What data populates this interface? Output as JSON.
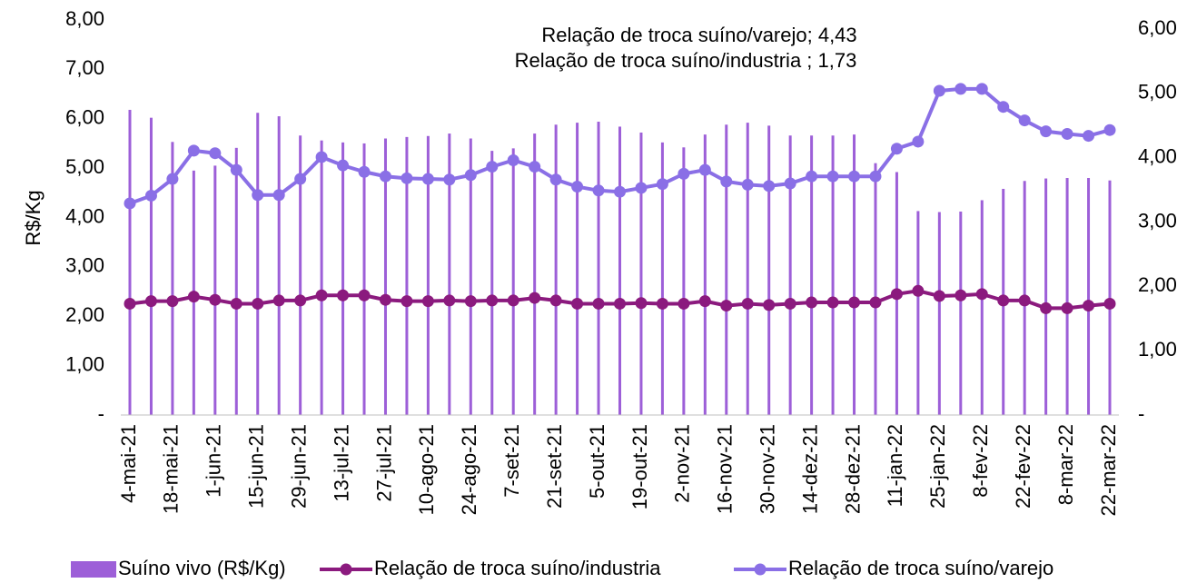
{
  "chart_data": {
    "type": "bar-line",
    "ylabel": "R$/Kg",
    "annotations": [
      "Relação de troca suíno/varejo; 4,43",
      "Relação de troca suíno/industria ; 1,73"
    ],
    "categories": [
      "4-mai-21",
      null,
      "18-mai-21",
      null,
      "1-jun-21",
      null,
      "15-jun-21",
      null,
      "29-jun-21",
      null,
      "13-jul-21",
      null,
      "27-jul-21",
      null,
      "10-ago-21",
      null,
      "24-ago-21",
      null,
      "7-set-21",
      null,
      "21-set-21",
      null,
      "5-out-21",
      null,
      "19-out-21",
      null,
      "2-nov-21",
      null,
      "16-nov-21",
      null,
      "30-nov-21",
      null,
      "14-dez-21",
      null,
      "28-dez-21",
      null,
      "11-jan-22",
      null,
      "25-jan-22",
      null,
      "8-fev-22",
      null,
      "22-fev-22",
      null,
      "8-mar-22",
      null,
      "22-mar-22"
    ],
    "ylim": [
      0,
      8
    ],
    "yticks": [
      {
        "value": 0,
        "label": "-"
      },
      {
        "value": 1,
        "label": "1,00"
      },
      {
        "value": 2,
        "label": "2,00"
      },
      {
        "value": 3,
        "label": "3,00"
      },
      {
        "value": 4,
        "label": "4,00"
      },
      {
        "value": 5,
        "label": "5,00"
      },
      {
        "value": 6,
        "label": "6,00"
      },
      {
        "value": 7,
        "label": "7,00"
      },
      {
        "value": 8,
        "label": "8,00"
      }
    ],
    "y2lim": [
      0,
      6
    ],
    "y2ticks": [
      {
        "value": 0,
        "label": "-"
      },
      {
        "value": 1,
        "label": "1,00"
      },
      {
        "value": 2,
        "label": "2,00"
      },
      {
        "value": 3,
        "label": "3,00"
      },
      {
        "value": 4,
        "label": "4,00"
      },
      {
        "value": 5,
        "label": "5,00"
      },
      {
        "value": 6,
        "label": "6,00"
      }
    ],
    "grid": false,
    "series": [
      {
        "name": "Suíno vivo (R$/Kg)",
        "type": "bar",
        "axis": "y",
        "color": "#9d5fd8",
        "values": [
          6.18,
          6.02,
          5.53,
          4.95,
          5.05,
          5.41,
          6.12,
          6.05,
          5.66,
          5.56,
          5.52,
          5.5,
          5.6,
          5.63,
          5.65,
          5.7,
          5.6,
          5.35,
          5.4,
          5.7,
          5.88,
          5.92,
          5.94,
          5.84,
          5.72,
          5.52,
          5.42,
          5.68,
          5.88,
          5.92,
          5.86,
          5.66,
          5.66,
          5.66,
          5.68,
          5.1,
          4.92,
          4.13,
          4.11,
          4.12,
          4.35,
          4.58,
          4.74,
          4.79,
          4.8,
          4.8,
          4.75
        ]
      },
      {
        "name": "Relação de troca suíno/industria",
        "type": "line",
        "axis": "y2",
        "color": "#8b1a7e",
        "values": [
          1.73,
          1.77,
          1.77,
          1.84,
          1.79,
          1.73,
          1.73,
          1.78,
          1.78,
          1.86,
          1.86,
          1.86,
          1.79,
          1.77,
          1.77,
          1.78,
          1.77,
          1.78,
          1.78,
          1.82,
          1.78,
          1.73,
          1.73,
          1.73,
          1.74,
          1.73,
          1.73,
          1.77,
          1.7,
          1.73,
          1.71,
          1.73,
          1.75,
          1.75,
          1.75,
          1.75,
          1.88,
          1.93,
          1.85,
          1.86,
          1.88,
          1.78,
          1.78,
          1.66,
          1.66,
          1.7,
          1.73
        ]
      },
      {
        "name": "Relação de troca suíno/varejo",
        "type": "line",
        "axis": "y2",
        "color": "#8a6fe6",
        "values": [
          3.29,
          3.41,
          3.67,
          4.11,
          4.07,
          3.81,
          3.42,
          3.42,
          3.67,
          4.01,
          3.88,
          3.78,
          3.71,
          3.68,
          3.67,
          3.66,
          3.73,
          3.86,
          3.96,
          3.86,
          3.66,
          3.55,
          3.49,
          3.47,
          3.53,
          3.59,
          3.75,
          3.81,
          3.63,
          3.58,
          3.56,
          3.6,
          3.71,
          3.71,
          3.71,
          3.71,
          4.14,
          4.25,
          5.04,
          5.07,
          5.07,
          4.79,
          4.58,
          4.41,
          4.37,
          4.34,
          4.43
        ]
      }
    ]
  }
}
